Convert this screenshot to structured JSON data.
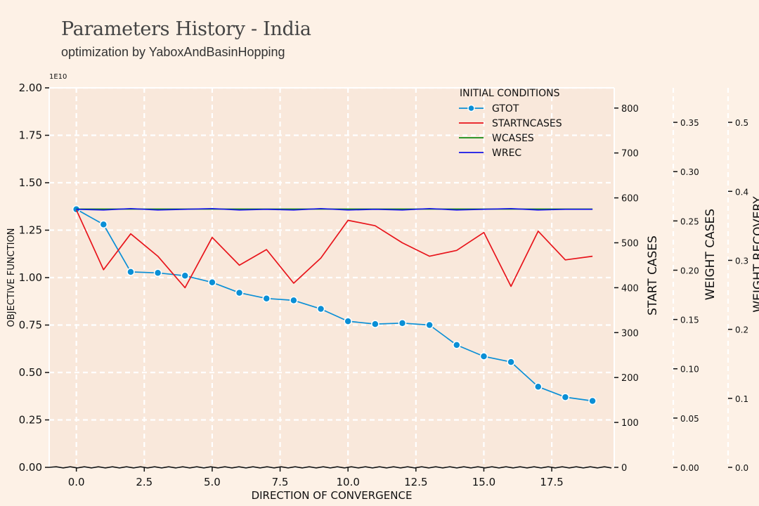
{
  "header": {
    "title": "Parameters History - India",
    "subtitle": "optimization by YaboxAndBasinHopping"
  },
  "chart_data": {
    "type": "line",
    "xlabel": "DIRECTION OF CONVERGENCE",
    "x_ticks": [
      "0.0",
      "2.5",
      "5.0",
      "7.5",
      "10.0",
      "12.5",
      "15.0",
      "17.5"
    ],
    "xlim": [
      -1,
      19.8
    ],
    "legend": {
      "title": "INITIAL CONDITIONS",
      "placement": "top-right"
    },
    "grid": true,
    "axes": {
      "objective": {
        "label": "OBJECTIVE FUNCTION",
        "ylim": [
          0,
          2.0
        ],
        "multiplier": "1E10",
        "ticks": [
          "0.00",
          "0.25",
          "0.50",
          "0.75",
          "1.00",
          "1.25",
          "1.50",
          "1.75",
          "2.00"
        ]
      },
      "start_cases": {
        "label": "START CASES",
        "ylim": [
          0,
          845
        ],
        "ticks": [
          "0",
          "100",
          "200",
          "300",
          "400",
          "500",
          "600",
          "700",
          "800"
        ]
      },
      "weight_cases": {
        "label": "WEIGHT CASES",
        "ylim": [
          0,
          0.385
        ],
        "ticks": [
          "0.00",
          "0.05",
          "0.10",
          "0.15",
          "0.20",
          "0.25",
          "0.30",
          "0.35"
        ]
      },
      "weight_recovery": {
        "label": "WEIGHT RECOVERY",
        "ylim": [
          0,
          0.55
        ],
        "ticks": [
          "0.0",
          "0.1",
          "0.2",
          "0.3",
          "0.4",
          "0.5"
        ]
      }
    },
    "series": [
      {
        "name": "GTOT",
        "axis": "objective",
        "color": "#0a8fd6",
        "marker": true,
        "x": [
          0,
          1,
          2,
          3,
          4,
          5,
          6,
          7,
          8,
          9,
          10,
          11,
          12,
          13,
          14,
          15,
          16,
          17,
          18,
          19
        ],
        "values": [
          1.36,
          1.28,
          1.03,
          1.025,
          1.01,
          0.975,
          0.92,
          0.89,
          0.88,
          0.835,
          0.77,
          0.755,
          0.76,
          0.75,
          0.645,
          0.585,
          0.555,
          0.425,
          0.37,
          0.35
        ]
      },
      {
        "name": "STARTNCASES",
        "axis": "start_cases",
        "color": "#e8141b",
        "marker": false,
        "x": [
          0,
          1,
          2,
          3,
          4,
          5,
          6,
          7,
          8,
          9,
          10,
          11,
          12,
          13,
          14,
          15,
          16,
          17,
          18,
          19
        ],
        "values": [
          573,
          440,
          520,
          470,
          400,
          512,
          450,
          485,
          410,
          466,
          550,
          538,
          500,
          470,
          483,
          523,
          403,
          526,
          462,
          470
        ]
      },
      {
        "name": "WCASES",
        "axis": "weight_cases",
        "color": "#138a13",
        "marker": false,
        "x": [
          0,
          19
        ],
        "values": [
          0.262,
          0.262
        ]
      },
      {
        "name": "WREC",
        "axis": "weight_recovery",
        "color": "#1414e8",
        "marker": false,
        "x": [
          0,
          1,
          2,
          3,
          4,
          5,
          6,
          7,
          8,
          9,
          10,
          11,
          12,
          13,
          14,
          15,
          16,
          17,
          18,
          19
        ],
        "values": [
          0.374,
          0.373,
          0.375,
          0.373,
          0.374,
          0.375,
          0.373,
          0.374,
          0.373,
          0.375,
          0.373,
          0.374,
          0.373,
          0.375,
          0.373,
          0.374,
          0.375,
          0.373,
          0.374,
          0.374
        ]
      }
    ]
  }
}
